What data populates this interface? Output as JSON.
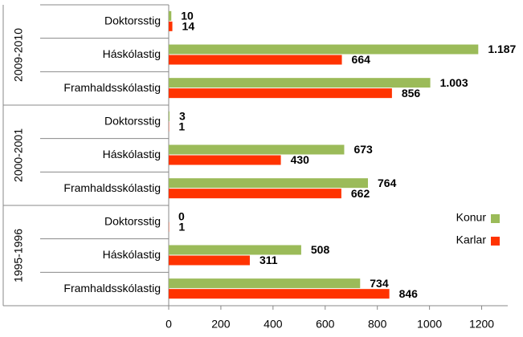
{
  "chart_data": {
    "type": "hbar",
    "groups": [
      "2009-2010",
      "2000-2001",
      "1995-1996"
    ],
    "categories": [
      "Doktorsstig",
      "Háskólastig",
      "Framhaldsskólastig",
      "Doktorsstig",
      "Háskólastig",
      "Framhaldsskólastig",
      "Doktorsstig",
      "Háskólastig",
      "Framhaldsskólastig"
    ],
    "series": [
      {
        "name": "Konur",
        "color": "#9bbb59",
        "values": [
          10,
          1187,
          1003,
          3,
          673,
          764,
          0,
          508,
          734
        ],
        "value_labels": [
          "10",
          "1.187",
          "1.003",
          "3",
          "673",
          "764",
          "0",
          "508",
          "734"
        ]
      },
      {
        "name": "Karlar",
        "color": "#ff3300",
        "values": [
          14,
          664,
          856,
          1,
          430,
          662,
          1,
          311,
          846
        ],
        "value_labels": [
          "14",
          "664",
          "856",
          "1",
          "430",
          "662",
          "1",
          "311",
          "846"
        ]
      }
    ],
    "xlim": [
      0,
      1300
    ],
    "xticks": [
      0,
      200,
      400,
      600,
      800,
      1000,
      1200
    ],
    "legend": "right"
  }
}
